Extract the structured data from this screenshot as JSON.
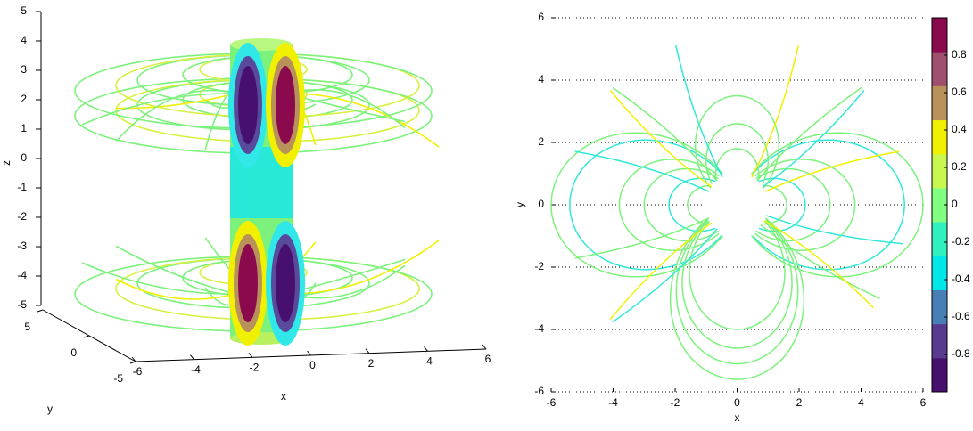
{
  "chart_data": [
    {
      "type": "streamline3d",
      "xlabel": "x",
      "ylabel": "y",
      "zlabel": "z",
      "xlim": [
        -6,
        6
      ],
      "xticks": [
        -6,
        -4,
        -2,
        0,
        2,
        4,
        6
      ],
      "ylim": [
        -5,
        5
      ],
      "yticks": [
        -5,
        0,
        5
      ],
      "zlim": [
        -5,
        5
      ],
      "zticks": [
        -5,
        -4,
        -3,
        -2,
        -1,
        0,
        1,
        2,
        3,
        4,
        5
      ]
    },
    {
      "type": "streamline",
      "xlabel": "x",
      "ylabel": "y",
      "xlim": [
        -6,
        6
      ],
      "xticks": [
        -6,
        -4,
        -2,
        0,
        2,
        4,
        6
      ],
      "ylim": [
        -6,
        6
      ],
      "yticks": [
        -6,
        -4,
        -2,
        0,
        2,
        4,
        6
      ],
      "grid": true,
      "colorbar": {
        "clim": [
          -1,
          1
        ],
        "ticks": [
          -0.8,
          -0.6,
          -0.4,
          -0.2,
          0,
          0.2,
          0.4,
          0.6,
          0.8
        ],
        "colors": [
          "#48106e",
          "#5a3a8c",
          "#4a7fb5",
          "#00e8e8",
          "#30f0c0",
          "#80ff80",
          "#c8f850",
          "#f0f000",
          "#b8925a",
          "#a0506e",
          "#8b0a4e"
        ]
      }
    }
  ]
}
